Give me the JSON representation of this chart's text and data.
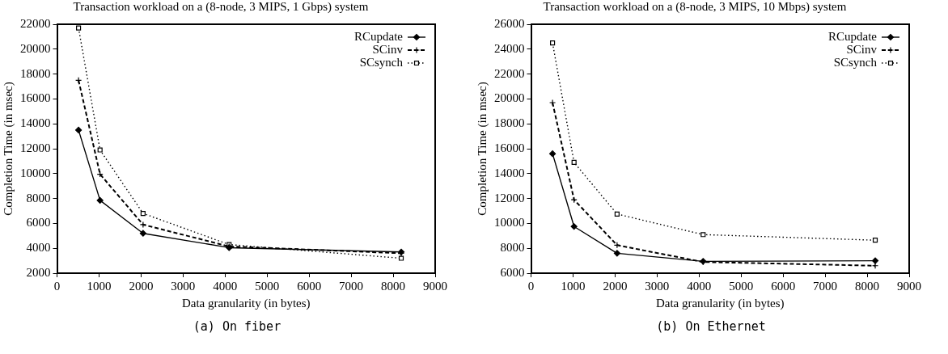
{
  "chart_data": [
    {
      "type": "line",
      "title": "Transaction workload on a (8-node, 3 MIPS, 1 Gbps) system",
      "xlabel": "Data granularity (in bytes)",
      "ylabel": "Completion Time (in msec)",
      "annotations": [
        "(a) On fiber"
      ],
      "x": [
        512,
        1024,
        2048,
        4096,
        8192
      ],
      "xlim": [
        0,
        9000
      ],
      "xticks": [
        0,
        1000,
        2000,
        3000,
        4000,
        5000,
        6000,
        7000,
        8000,
        9000
      ],
      "ylim": [
        2000,
        22000
      ],
      "yticks": [
        2000,
        4000,
        6000,
        8000,
        10000,
        12000,
        14000,
        16000,
        18000,
        20000,
        22000
      ],
      "grid": false,
      "legend": "top right",
      "series": [
        {
          "name": "RCupdate",
          "color": "#000000",
          "marker": "diamond",
          "line_style": "solid",
          "values": [
            13500,
            7850,
            5200,
            4050,
            3700
          ]
        },
        {
          "name": "SCinv",
          "color": "#000000",
          "marker": "cross",
          "line_style": "dashed",
          "values": [
            17500,
            9950,
            5900,
            4150,
            3600
          ]
        },
        {
          "name": "SCsynch",
          "color": "#000000",
          "marker": "square",
          "line_style": "dotted",
          "values": [
            21700,
            11900,
            6800,
            4300,
            3200
          ]
        }
      ]
    },
    {
      "type": "line",
      "title": "Transaction workload on a (8-node, 3 MIPS, 10 Mbps) system",
      "xlabel": "Data granularity (in bytes)",
      "ylabel": "Completion Time (in msec)",
      "annotations": [
        "(b) On Ethernet"
      ],
      "x": [
        512,
        1024,
        2048,
        4096,
        8192
      ],
      "xlim": [
        0,
        9000
      ],
      "xticks": [
        0,
        1000,
        2000,
        3000,
        4000,
        5000,
        6000,
        7000,
        8000,
        9000
      ],
      "ylim": [
        6000,
        26000
      ],
      "yticks": [
        6000,
        8000,
        10000,
        12000,
        14000,
        16000,
        18000,
        20000,
        22000,
        24000,
        26000
      ],
      "grid": false,
      "legend": "top right",
      "series": [
        {
          "name": "RCupdate",
          "color": "#000000",
          "marker": "diamond",
          "line_style": "solid",
          "values": [
            15600,
            9750,
            7600,
            6950,
            7000
          ]
        },
        {
          "name": "SCinv",
          "color": "#000000",
          "marker": "cross",
          "line_style": "dashed",
          "values": [
            19700,
            11900,
            8250,
            6900,
            6600
          ]
        },
        {
          "name": "SCsynch",
          "color": "#000000",
          "marker": "square",
          "line_style": "dotted",
          "values": [
            24500,
            14900,
            10750,
            9100,
            8650
          ]
        }
      ]
    }
  ]
}
